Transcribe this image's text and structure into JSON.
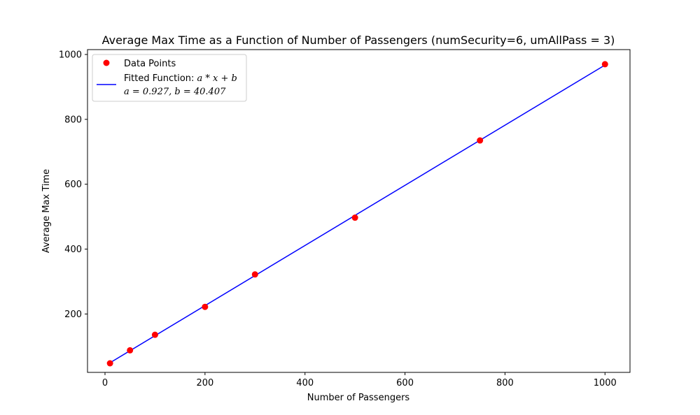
{
  "chart_data": {
    "type": "scatter",
    "title": "Average Max Time as a Function of Number of Passengers (numSecurity=6, umAllPass = 3)",
    "xlabel": "Number of Passengers",
    "ylabel": "Average Max Time",
    "xlim": [
      -35,
      1050
    ],
    "ylim": [
      20,
      1015
    ],
    "xticks": [
      0,
      200,
      400,
      600,
      800,
      1000
    ],
    "yticks": [
      200,
      400,
      600,
      800,
      1000
    ],
    "grid": false,
    "legend_position": "upper-left",
    "series": [
      {
        "name": "Data Points",
        "kind": "scatter",
        "color": "#ff0000",
        "x": [
          10,
          50,
          100,
          200,
          300,
          500,
          750,
          1000
        ],
        "y": [
          48,
          88,
          136,
          222,
          322,
          497,
          735,
          970
        ]
      },
      {
        "name": "Fitted Function: a * x + b",
        "kind": "line",
        "color": "#0000ff",
        "a": 0.927,
        "b": 40.407,
        "x_range": [
          10,
          1000
        ]
      }
    ],
    "legend": {
      "entries": [
        {
          "label": "Data Points"
        },
        {
          "label_prefix": "Fitted Function: ",
          "label_math": "a * x + b",
          "label_line2": "a = 0.927, b = 40.407"
        }
      ]
    }
  }
}
